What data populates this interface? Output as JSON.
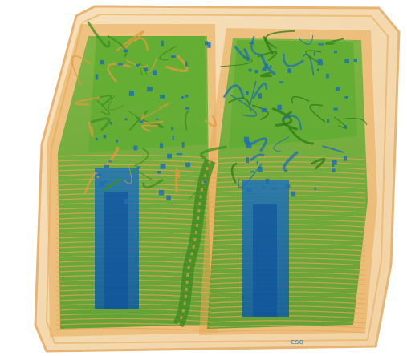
{
  "image": {
    "subject": "x-ray-scan-of-two-parcels",
    "palette": {
      "background": "#ffffff",
      "outer_container": "#f1d3a6",
      "container_edge": "#e6b06c",
      "organic_orange": "#e59f45",
      "inorganic_green": "#5ca82e",
      "green_dark": "#3f8f22",
      "dense_blue": "#1f73b8",
      "deep_blue": "#0b4f9c"
    },
    "corner_mark": "cso"
  }
}
